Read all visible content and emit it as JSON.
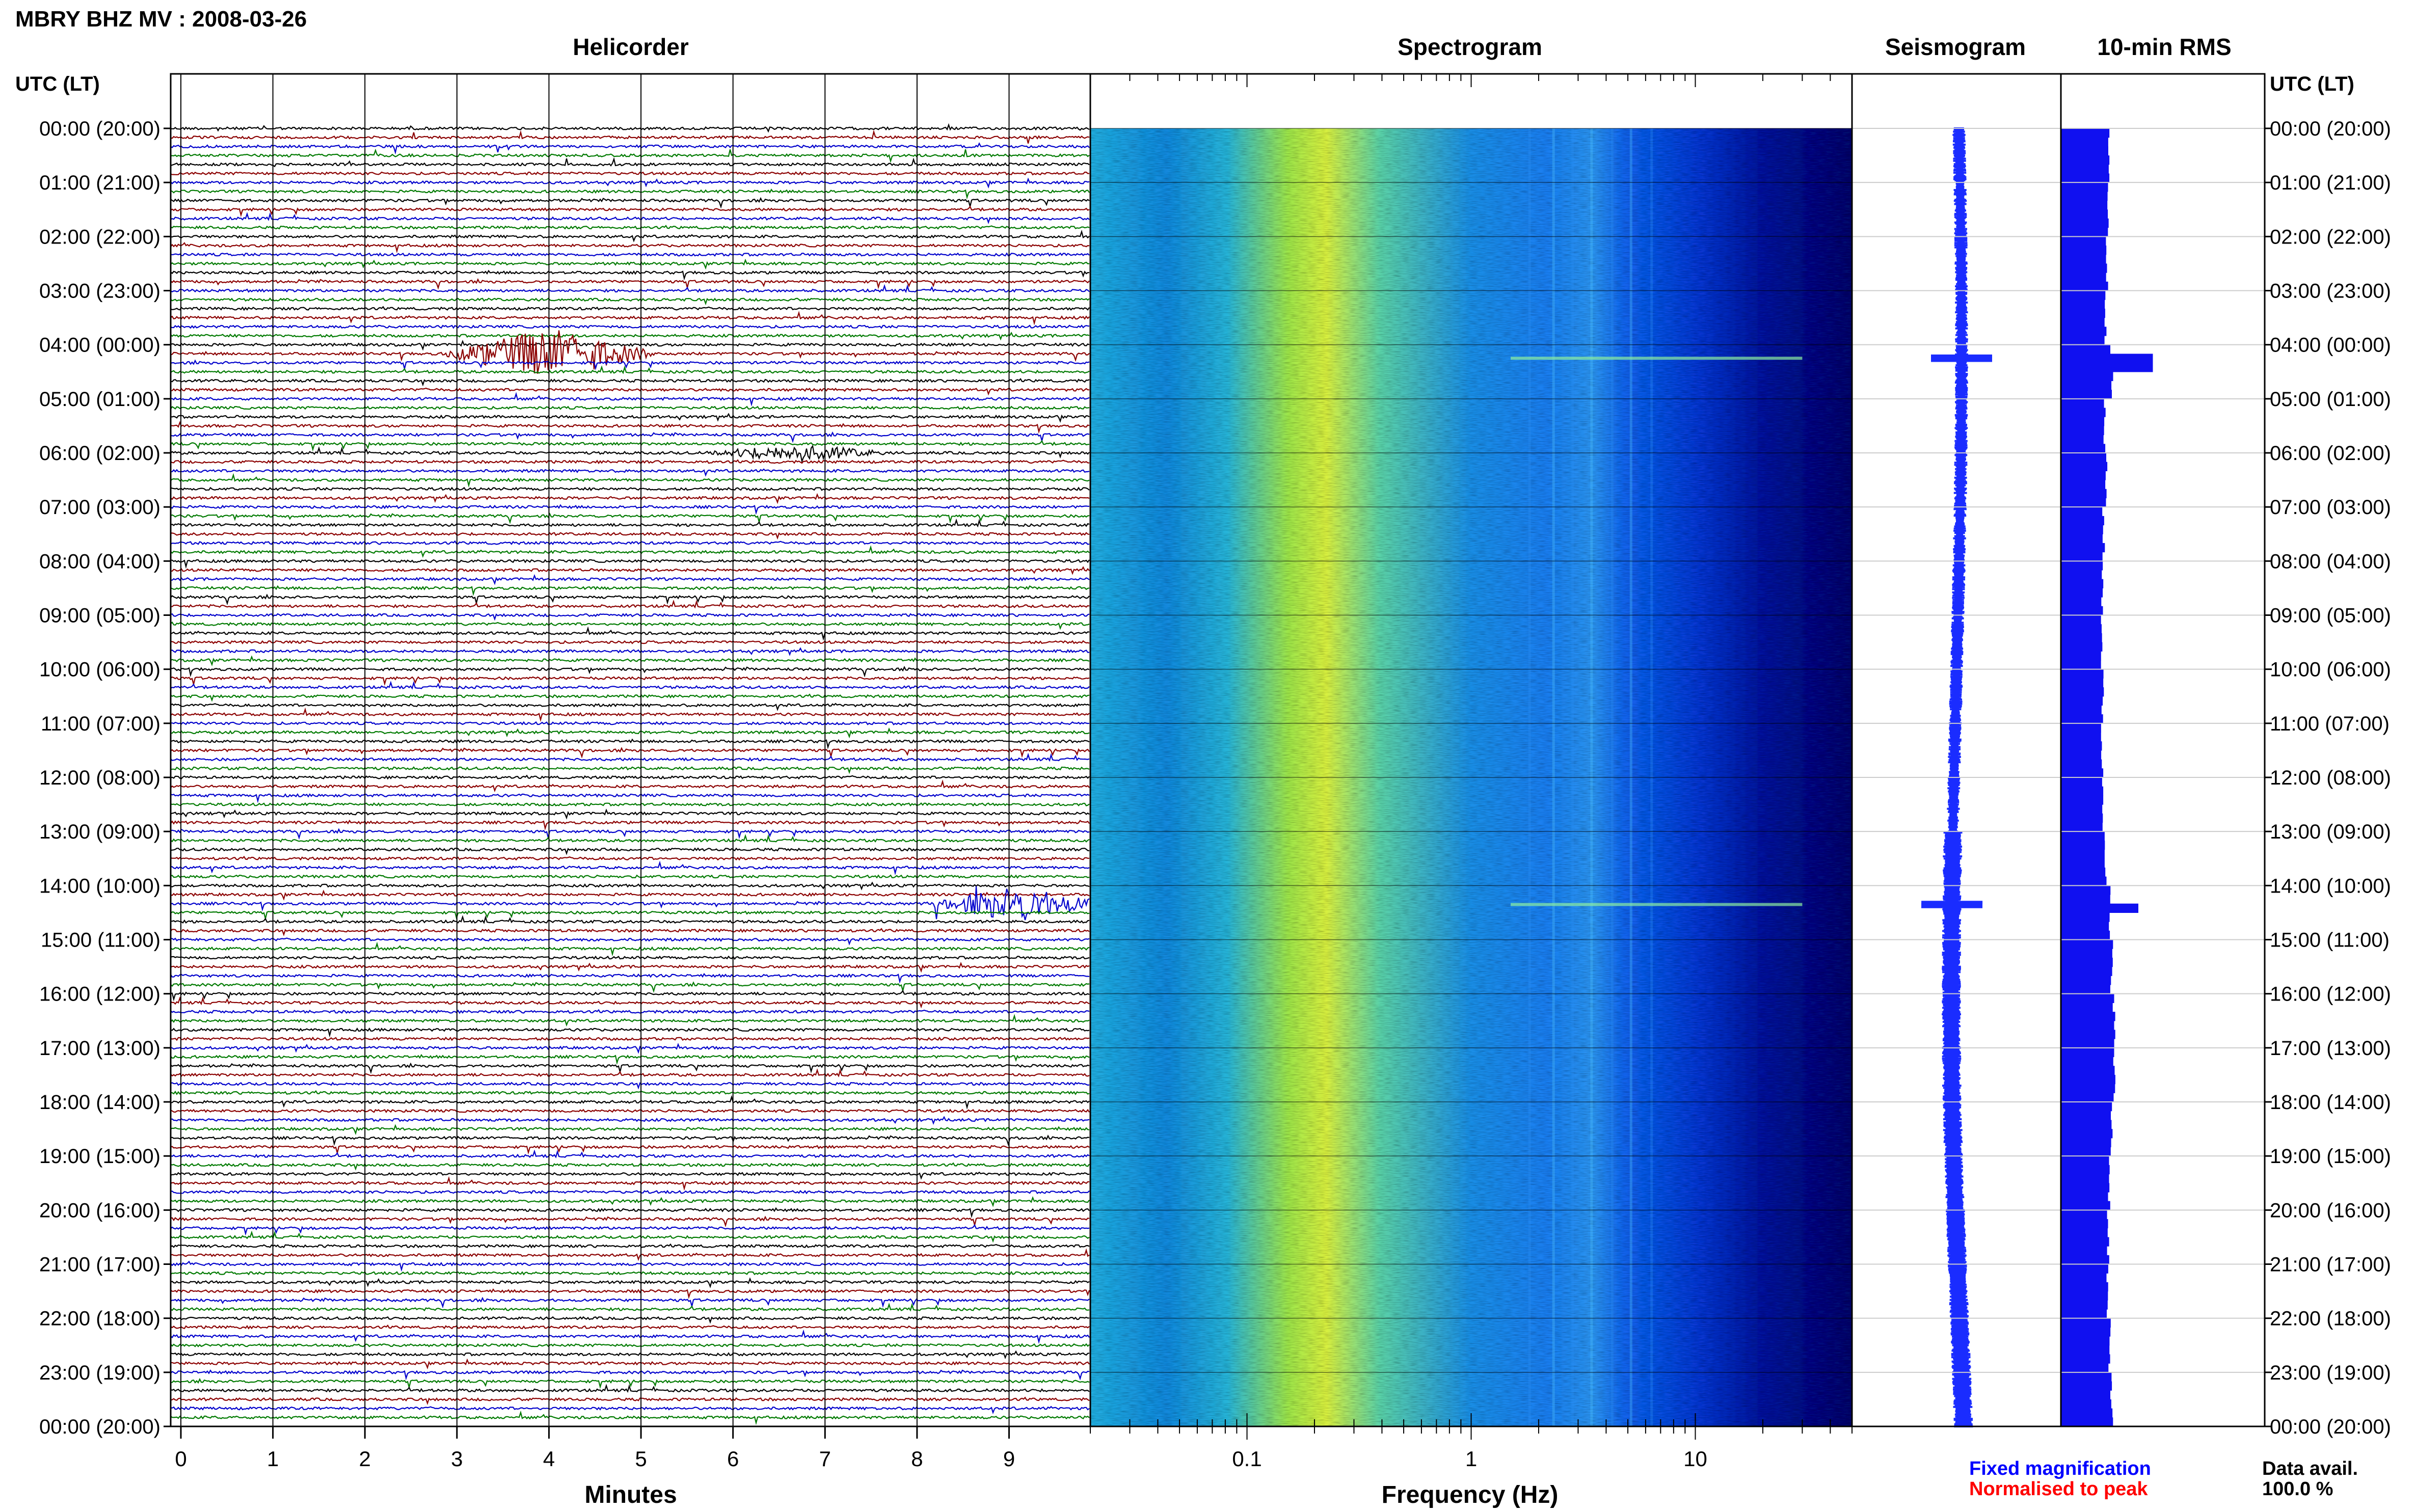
{
  "header": {
    "station_title": "MBRY BHZ MV : 2008-03-26",
    "time_axis_label": "UTC (LT)"
  },
  "panels": {
    "helicorder": {
      "title": "Helicorder",
      "xlabel": "Minutes",
      "ticks": [
        "0",
        "1",
        "2",
        "3",
        "4",
        "5",
        "6",
        "7",
        "8",
        "9"
      ],
      "trace_colors": [
        "#000000",
        "#8b0000",
        "#0000cc",
        "#007a00"
      ],
      "rows_per_hour": 6,
      "total_rows": 144,
      "events": [
        {
          "row": 25,
          "minute": 4.0,
          "amp": 3.2,
          "width": 1.2,
          "color": "#8b0000"
        },
        {
          "row": 36,
          "minute": 6.7,
          "amp": 1.0,
          "width": 1.0,
          "color": "#000000"
        },
        {
          "row": 86,
          "minute": 9.1,
          "amp": 2.2,
          "width": 1.0,
          "color": "#0000cc"
        }
      ]
    },
    "spectrogram": {
      "title": "Spectrogram",
      "xlabel": "Frequency (Hz)",
      "ticks": [
        "0.1",
        "1",
        "10"
      ],
      "freq_range": [
        0.02,
        50
      ]
    },
    "seismogram": {
      "title": "Seismogram"
    },
    "rms": {
      "title": "10-min RMS"
    }
  },
  "legend": {
    "fixed": "Fixed magnification",
    "fixed_color": "#0000ff",
    "normalised": "Normalised to peak",
    "normalised_color": "#ff0000",
    "data_avail_label": "Data avail.",
    "data_avail_value": "100.0 %"
  },
  "chart_data": {
    "type": "heatmap",
    "title": "MBRY BHZ MV : 2008-03-26",
    "y_ticks": [
      "00:00 (20:00)",
      "01:00 (21:00)",
      "02:00 (22:00)",
      "03:00 (23:00)",
      "04:00 (00:00)",
      "05:00 (01:00)",
      "06:00 (02:00)",
      "07:00 (03:00)",
      "08:00 (04:00)",
      "09:00 (05:00)",
      "10:00 (06:00)",
      "11:00 (07:00)",
      "12:00 (08:00)",
      "13:00 (09:00)",
      "14:00 (10:00)",
      "15:00 (11:00)",
      "16:00 (12:00)",
      "17:00 (13:00)",
      "18:00 (14:00)",
      "19:00 (15:00)",
      "20:00 (16:00)",
      "21:00 (17:00)",
      "22:00 (18:00)",
      "23:00 (19:00)",
      "00:00 (20:00)"
    ],
    "x_label_helicorder": "Minutes",
    "x_label_spectrogram": "Frequency (Hz)",
    "rms_by_hour": [
      1.0,
      0.97,
      0.95,
      0.93,
      1.05,
      0.9,
      0.93,
      0.88,
      0.86,
      0.85,
      0.86,
      0.85,
      0.87,
      0.93,
      1.0,
      1.05,
      1.1,
      1.1,
      1.05,
      1.0,
      0.98,
      0.96,
      1.0,
      1.05
    ],
    "rms_spikes": [
      {
        "hour": 4.25,
        "value": 1.9
      },
      {
        "hour": 14.35,
        "value": 1.6
      }
    ]
  }
}
